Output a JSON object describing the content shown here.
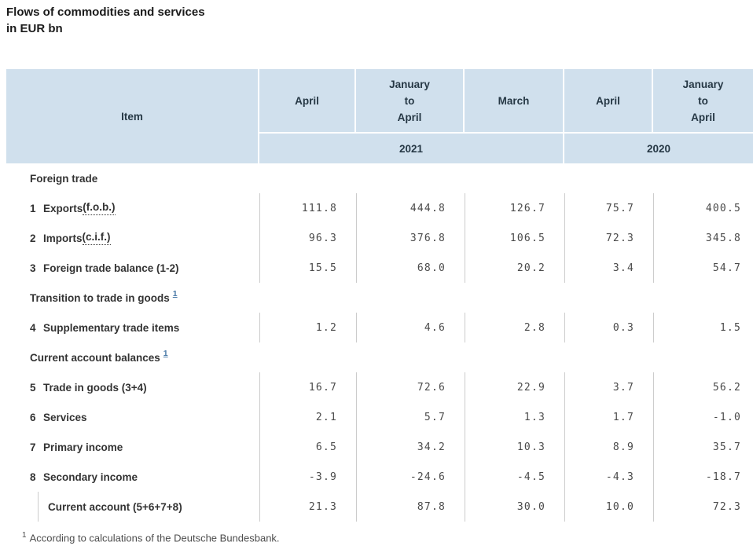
{
  "title": {
    "line1": "Flows of commodities and services",
    "line2": "in EUR bn"
  },
  "table": {
    "header": {
      "item_label": "Item",
      "period_columns": [
        "April",
        "January\nto\nApril",
        "March",
        "April",
        "January\nto\nApril"
      ],
      "year_groups": [
        {
          "label": "2021",
          "columns": [
            "April",
            "January to April",
            "March"
          ]
        },
        {
          "label": "2020",
          "columns": [
            "April",
            "January to April"
          ]
        }
      ]
    },
    "rows": [
      {
        "type": "section",
        "label": "Foreign trade",
        "footnote_ref": ""
      },
      {
        "type": "data",
        "num": "1",
        "label": "Exports ",
        "dotted": "(f.o.b.)",
        "values": [
          "111.8",
          "444.8",
          "126.7",
          "75.7",
          "400.5"
        ]
      },
      {
        "type": "data",
        "num": "2",
        "label": "Imports ",
        "dotted": "(c.i.f.)",
        "values": [
          "96.3",
          "376.8",
          "106.5",
          "72.3",
          "345.8"
        ]
      },
      {
        "type": "data",
        "num": "3",
        "label": "Foreign trade balance (1-2)",
        "dotted": "",
        "values": [
          "15.5",
          "68.0",
          "20.2",
          "3.4",
          "54.7"
        ]
      },
      {
        "type": "section",
        "label": "Transition to trade in goods",
        "footnote_ref": "1"
      },
      {
        "type": "data",
        "num": "4",
        "label": "Supplementary trade items",
        "dotted": "",
        "values": [
          "1.2",
          "4.6",
          "2.8",
          "0.3",
          "1.5"
        ]
      },
      {
        "type": "section",
        "label": "Current account balances",
        "footnote_ref": "1"
      },
      {
        "type": "data",
        "num": "5",
        "label": "Trade in goods (3+4)",
        "dotted": "",
        "values": [
          "16.7",
          "72.6",
          "22.9",
          "3.7",
          "56.2"
        ]
      },
      {
        "type": "data",
        "num": "6",
        "label": "Services",
        "dotted": "",
        "values": [
          "2.1",
          "5.7",
          "1.3",
          "1.7",
          "-1.0"
        ]
      },
      {
        "type": "data",
        "num": "7",
        "label": "Primary income",
        "dotted": "",
        "values": [
          "6.5",
          "34.2",
          "10.3",
          "8.9",
          "35.7"
        ]
      },
      {
        "type": "data",
        "num": "8",
        "label": "Secondary income",
        "dotted": "",
        "values": [
          "-3.9",
          "-24.6",
          "-4.5",
          "-4.3",
          "-18.7"
        ]
      },
      {
        "type": "total",
        "label": "Current account (5+6+7+8)",
        "values": [
          "21.3",
          "87.8",
          "30.0",
          "10.0",
          "72.3"
        ]
      }
    ]
  },
  "footnote": {
    "marker": "1",
    "text": "According to calculations of the Deutsche Bundesbank."
  },
  "colors": {
    "header_bg": "#d0e0ed",
    "header_text": "#263845",
    "label_text": "#333333",
    "number_text": "#4a4a4a",
    "separator": "#cccccc",
    "footnote_link": "#4a7aa8"
  }
}
